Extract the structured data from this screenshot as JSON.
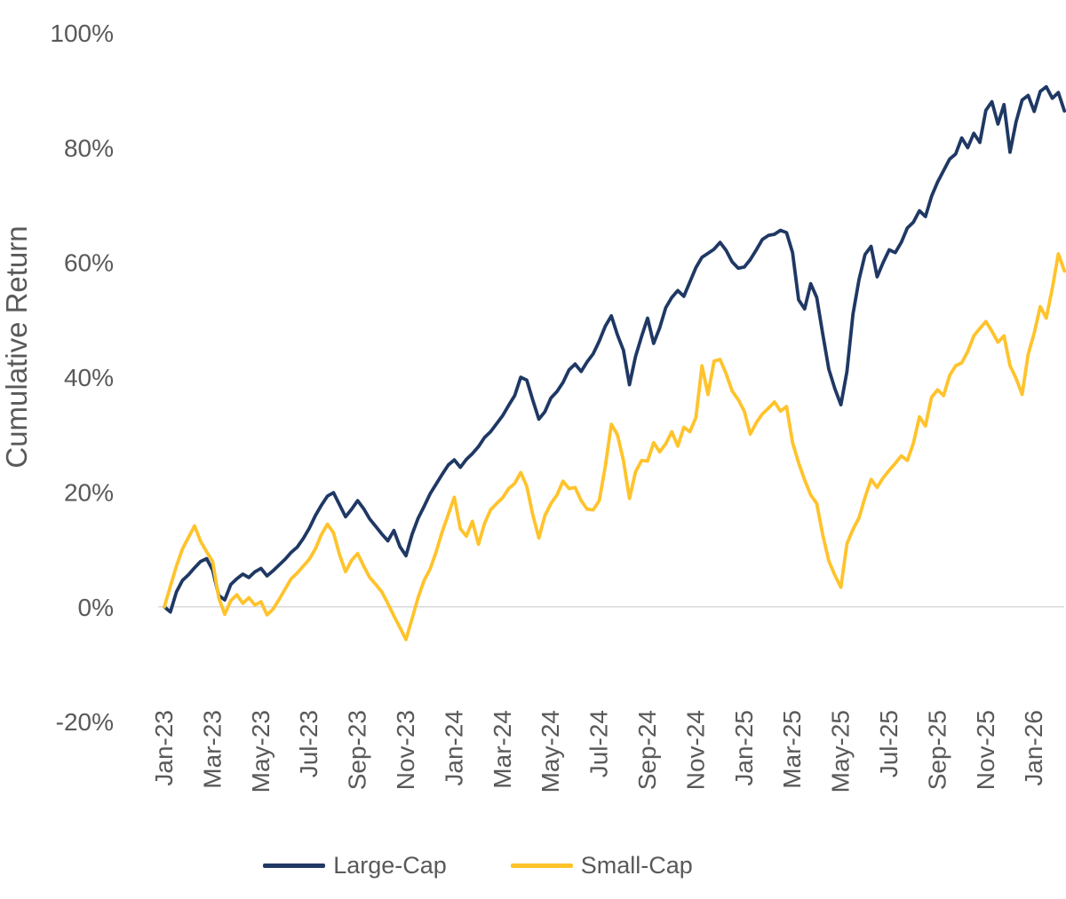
{
  "page": {
    "background": "#FFFFFF",
    "text_color": "#595959"
  },
  "chart_data": {
    "type": "line",
    "title": "",
    "xlabel": "",
    "ylabel": "Cumulative Return",
    "ylim": [
      -20,
      100
    ],
    "yticks": [
      {
        "value": 100,
        "label": "100%"
      },
      {
        "value": 80,
        "label": "80%"
      },
      {
        "value": 60,
        "label": "60%"
      },
      {
        "value": 40,
        "label": "40%"
      },
      {
        "value": 20,
        "label": "20%"
      },
      {
        "value": 0,
        "label": "0%"
      },
      {
        "value": -20,
        "label": "-20%"
      }
    ],
    "grid": {
      "horizontal_lines_at": [
        0
      ],
      "color": "#D9D9D9"
    },
    "x_axis": {
      "unit": "months since Jan-2023",
      "start_month": 0,
      "step_months": 0.25,
      "tick_interval_months": 2,
      "tick_labels": [
        "Jan-23",
        "Mar-23",
        "May-23",
        "Jul-23",
        "Sep-23",
        "Nov-23",
        "Jan-24",
        "Mar-24",
        "May-24",
        "Jul-24",
        "Sep-24",
        "Nov-24",
        "Jan-25",
        "Mar-25",
        "May-25",
        "Jul-25",
        "Sep-25",
        "Nov-25",
        "Jan-26"
      ]
    },
    "legend_position": "bottom",
    "series": [
      {
        "name": "Large-Cap",
        "color": "#1F3864",
        "unit": "percent",
        "values": [
          0.0,
          -0.9,
          2.6,
          4.6,
          5.6,
          6.8,
          7.9,
          8.4,
          6.4,
          2.0,
          1.2,
          3.9,
          4.9,
          5.7,
          5.1,
          6.1,
          6.7,
          5.4,
          6.3,
          7.3,
          8.3,
          9.5,
          10.4,
          11.9,
          13.7,
          15.9,
          17.7,
          19.3,
          19.9,
          17.8,
          15.7,
          17.0,
          18.5,
          17.1,
          15.3,
          14.0,
          12.7,
          11.5,
          13.3,
          10.5,
          8.9,
          12.6,
          15.4,
          17.5,
          19.7,
          21.4,
          23.1,
          24.7,
          25.6,
          24.3,
          25.7,
          26.7,
          27.9,
          29.5,
          30.5,
          31.9,
          33.3,
          35.1,
          36.8,
          40.0,
          39.5,
          36.0,
          32.7,
          34.0,
          36.4,
          37.5,
          39.1,
          41.3,
          42.3,
          41.0,
          42.7,
          44.1,
          46.3,
          48.9,
          50.7,
          47.4,
          44.7,
          38.7,
          43.6,
          47.1,
          50.3,
          45.9,
          48.6,
          52.1,
          53.9,
          55.1,
          54.1,
          56.6,
          59.1,
          60.9,
          61.6,
          62.3,
          63.5,
          62.1,
          60.1,
          59.0,
          59.2,
          60.5,
          62.2,
          64.0,
          64.7,
          64.9,
          65.6,
          65.2,
          61.7,
          53.5,
          51.9,
          56.3,
          53.9,
          47.5,
          41.4,
          38.0,
          35.2,
          41.0,
          51.0,
          57.0,
          61.4,
          62.8,
          57.5,
          60.0,
          62.2,
          61.7,
          63.5,
          66.0,
          67.0,
          69.0,
          68.0,
          71.5,
          74.0,
          76.0,
          78.0,
          78.9,
          81.7,
          80.0,
          82.5,
          80.9,
          86.5,
          88.0,
          84.1,
          87.5,
          79.2,
          84.5,
          88.3,
          89.1,
          86.3,
          89.8,
          90.6,
          88.6,
          89.6,
          86.4
        ]
      },
      {
        "name": "Small-Cap",
        "color": "#FFC32B",
        "unit": "percent",
        "values": [
          0.0,
          3.6,
          7.1,
          10.1,
          12.1,
          14.1,
          11.4,
          9.6,
          7.9,
          1.6,
          -1.3,
          1.1,
          2.1,
          0.6,
          1.6,
          0.3,
          0.9,
          -1.4,
          -0.4,
          1.3,
          3.1,
          4.9,
          5.9,
          7.1,
          8.3,
          10.1,
          12.6,
          14.4,
          12.9,
          9.1,
          6.1,
          8.1,
          9.3,
          7.1,
          5.1,
          3.9,
          2.6,
          0.6,
          -1.6,
          -3.6,
          -5.7,
          -2.1,
          1.6,
          4.6,
          6.6,
          9.6,
          13.1,
          16.1,
          19.1,
          13.6,
          12.3,
          14.9,
          10.9,
          14.5,
          16.9,
          18.0,
          19.0,
          20.6,
          21.5,
          23.4,
          21.0,
          16.0,
          12.0,
          15.9,
          18.0,
          19.5,
          21.9,
          20.6,
          20.8,
          18.5,
          17.0,
          16.9,
          18.5,
          24.5,
          31.8,
          30.0,
          25.5,
          18.9,
          23.5,
          25.5,
          25.4,
          28.6,
          27.0,
          28.4,
          30.5,
          28.0,
          31.3,
          30.5,
          33.0,
          42.0,
          37.0,
          42.8,
          43.1,
          40.6,
          37.6,
          36.1,
          34.1,
          30.1,
          32.1,
          33.6,
          34.6,
          35.7,
          34.1,
          34.9,
          28.6,
          25.1,
          22.1,
          19.5,
          18.0,
          12.5,
          8.0,
          5.5,
          3.4,
          11.0,
          13.5,
          15.5,
          19.1,
          22.2,
          20.8,
          22.5,
          23.8,
          25.0,
          26.3,
          25.5,
          28.5,
          33.1,
          31.5,
          36.5,
          37.8,
          36.8,
          40.3,
          42.0,
          42.5,
          44.5,
          47.2,
          48.5,
          49.7,
          48.0,
          46.1,
          47.2,
          42.0,
          39.8,
          37.0,
          44.0,
          47.7,
          52.3,
          50.3,
          55.5,
          61.5,
          58.5
        ]
      }
    ]
  }
}
